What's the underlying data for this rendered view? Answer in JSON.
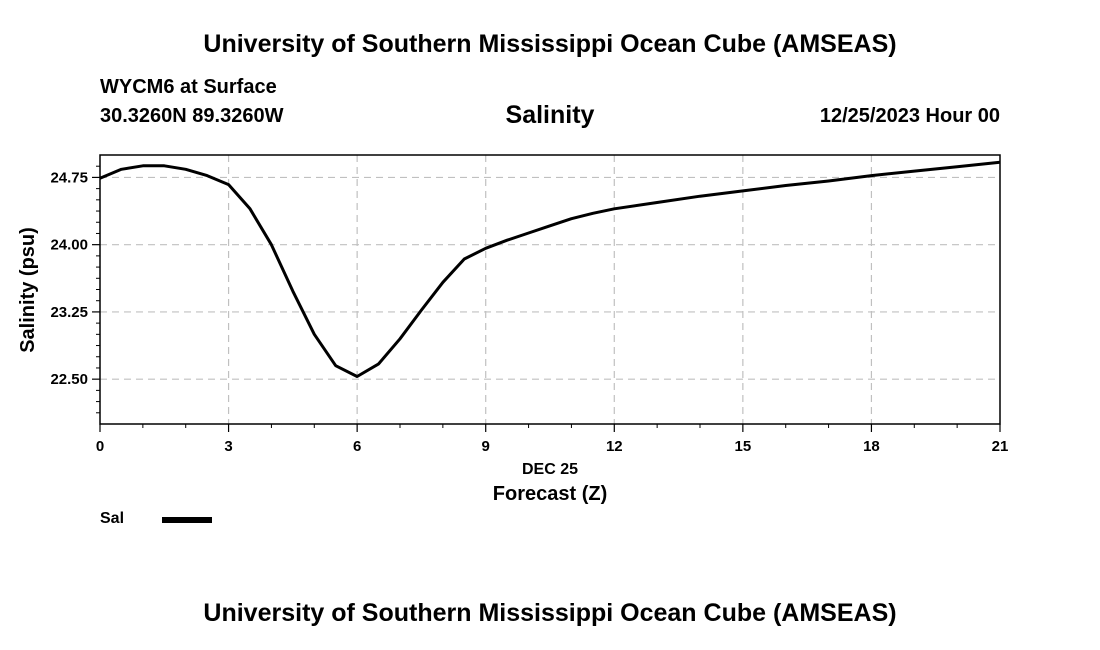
{
  "page": {
    "top_title": "University of Southern Mississippi Ocean Cube (AMSEAS)",
    "bottom_title": "University of Southern Mississippi Ocean Cube (AMSEAS)",
    "station": "WYCM6 at Surface",
    "coordinates": "30.3260N  89.3260W",
    "subtitle": "Salinity",
    "datetime": "12/25/2023 Hour 00"
  },
  "chart_data": {
    "type": "line",
    "title": "Salinity",
    "xlabel": "Forecast (Z)",
    "xlabel_date": "DEC 25",
    "ylabel": "Salinity (psu)",
    "xlim": [
      0,
      21
    ],
    "ylim": [
      22.0,
      25.0
    ],
    "xticks": [
      0,
      3,
      6,
      9,
      12,
      15,
      18,
      21
    ],
    "xtick_labels": [
      "0",
      "3",
      "6",
      "9",
      "12",
      "15",
      "18",
      "21"
    ],
    "yticks": [
      22.5,
      23.25,
      24.0,
      24.75
    ],
    "ytick_labels": [
      "22.50",
      "23.25",
      "24.00",
      "24.75"
    ],
    "grid": true,
    "legend": {
      "position": "bottom-left",
      "entries": [
        "Sal"
      ]
    },
    "series": [
      {
        "name": "Sal",
        "color": "#000000",
        "x": [
          0,
          0.5,
          1,
          1.5,
          2,
          2.5,
          3,
          3.5,
          4,
          4.5,
          5,
          5.5,
          6,
          6.5,
          7,
          7.5,
          8,
          8.5,
          9,
          9.5,
          10,
          10.5,
          11,
          11.5,
          12,
          13,
          14,
          15,
          16,
          17,
          18,
          19,
          20,
          21
        ],
        "values": [
          24.74,
          24.84,
          24.88,
          24.88,
          24.84,
          24.77,
          24.67,
          24.4,
          24.0,
          23.48,
          23.0,
          22.65,
          22.53,
          22.67,
          22.95,
          23.27,
          23.58,
          23.84,
          23.96,
          24.05,
          24.13,
          24.21,
          24.29,
          24.35,
          24.4,
          24.47,
          24.54,
          24.6,
          24.66,
          24.71,
          24.77,
          24.82,
          24.87,
          24.92
        ]
      }
    ]
  }
}
